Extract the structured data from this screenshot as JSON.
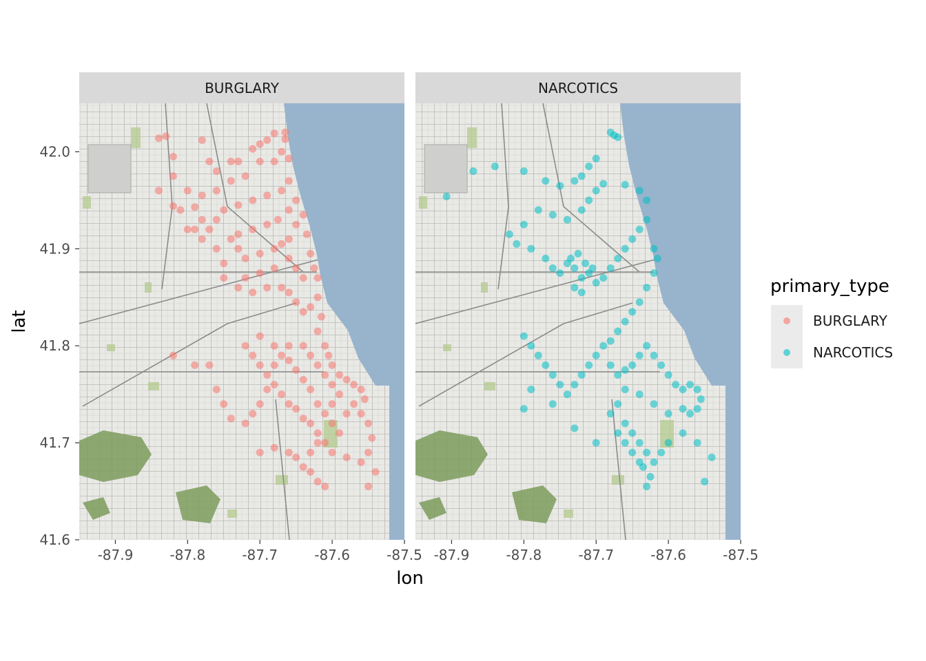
{
  "chart_data": {
    "type": "scatter",
    "xlabel": "lon",
    "ylabel": "lat",
    "xlim": [
      -87.95,
      -87.5
    ],
    "ylim": [
      41.6,
      42.05
    ],
    "x_ticks": [
      -87.9,
      -87.8,
      -87.7,
      -87.6,
      -87.5
    ],
    "x_tick_labels": [
      "-87.9",
      "-87.8",
      "-87.7",
      "-87.6",
      "-87.5"
    ],
    "y_ticks": [
      41.6,
      41.7,
      41.8,
      41.9,
      42.0
    ],
    "y_tick_labels": [
      "41.6",
      "41.7",
      "41.8",
      "41.9",
      "42.0"
    ],
    "facets": [
      "BURGLARY",
      "NARCOTICS"
    ],
    "legend": {
      "title": "primary_type",
      "position": "right",
      "entries": [
        {
          "label": "BURGLARY",
          "color": "#F8766D"
        },
        {
          "label": "NARCOTICS",
          "color": "#00BFC4"
        }
      ]
    },
    "basemap": "Chicago street map with Lake Michigan on the east",
    "series": [
      {
        "name": "BURGLARY",
        "color": "#F8766D",
        "points": [
          [
            -87.84,
            42.014
          ],
          [
            -87.83,
            42.016
          ],
          [
            -87.82,
            41.995
          ],
          [
            -87.78,
            42.012
          ],
          [
            -87.77,
            41.99
          ],
          [
            -87.76,
            41.98
          ],
          [
            -87.74,
            41.99
          ],
          [
            -87.73,
            41.99
          ],
          [
            -87.71,
            42.003
          ],
          [
            -87.7,
            42.008
          ],
          [
            -87.69,
            42.012
          ],
          [
            -87.68,
            42.019
          ],
          [
            -87.665,
            42.02
          ],
          [
            -87.665,
            42.013
          ],
          [
            -87.67,
            42.0
          ],
          [
            -87.66,
            41.993
          ],
          [
            -87.68,
            41.99
          ],
          [
            -87.7,
            41.99
          ],
          [
            -87.72,
            41.975
          ],
          [
            -87.74,
            41.97
          ],
          [
            -87.76,
            41.96
          ],
          [
            -87.78,
            41.955
          ],
          [
            -87.8,
            41.96
          ],
          [
            -87.82,
            41.975
          ],
          [
            -87.84,
            41.96
          ],
          [
            -87.82,
            41.944
          ],
          [
            -87.81,
            41.94
          ],
          [
            -87.79,
            41.943
          ],
          [
            -87.78,
            41.93
          ],
          [
            -87.77,
            41.92
          ],
          [
            -87.76,
            41.93
          ],
          [
            -87.75,
            41.94
          ],
          [
            -87.73,
            41.945
          ],
          [
            -87.71,
            41.95
          ],
          [
            -87.69,
            41.955
          ],
          [
            -87.67,
            41.96
          ],
          [
            -87.66,
            41.97
          ],
          [
            -87.65,
            41.95
          ],
          [
            -87.66,
            41.94
          ],
          [
            -87.675,
            41.93
          ],
          [
            -87.69,
            41.925
          ],
          [
            -87.71,
            41.92
          ],
          [
            -87.73,
            41.915
          ],
          [
            -87.74,
            41.91
          ],
          [
            -87.76,
            41.9
          ],
          [
            -87.78,
            41.91
          ],
          [
            -87.79,
            41.92
          ],
          [
            -87.8,
            41.92
          ],
          [
            -87.75,
            41.885
          ],
          [
            -87.75,
            41.87
          ],
          [
            -87.73,
            41.9
          ],
          [
            -87.72,
            41.89
          ],
          [
            -87.7,
            41.895
          ],
          [
            -87.68,
            41.9
          ],
          [
            -87.67,
            41.905
          ],
          [
            -87.66,
            41.91
          ],
          [
            -87.65,
            41.925
          ],
          [
            -87.64,
            41.935
          ],
          [
            -87.635,
            41.915
          ],
          [
            -87.63,
            41.895
          ],
          [
            -87.625,
            41.88
          ],
          [
            -87.62,
            41.87
          ],
          [
            -87.64,
            41.87
          ],
          [
            -87.65,
            41.88
          ],
          [
            -87.66,
            41.89
          ],
          [
            -87.68,
            41.88
          ],
          [
            -87.7,
            41.875
          ],
          [
            -87.72,
            41.87
          ],
          [
            -87.73,
            41.86
          ],
          [
            -87.71,
            41.855
          ],
          [
            -87.69,
            41.86
          ],
          [
            -87.67,
            41.86
          ],
          [
            -87.66,
            41.855
          ],
          [
            -87.65,
            41.845
          ],
          [
            -87.64,
            41.835
          ],
          [
            -87.63,
            41.84
          ],
          [
            -87.62,
            41.85
          ],
          [
            -87.615,
            41.83
          ],
          [
            -87.62,
            41.815
          ],
          [
            -87.61,
            41.8
          ],
          [
            -87.605,
            41.79
          ],
          [
            -87.6,
            41.78
          ],
          [
            -87.59,
            41.77
          ],
          [
            -87.58,
            41.765
          ],
          [
            -87.57,
            41.76
          ],
          [
            -87.56,
            41.755
          ],
          [
            -87.555,
            41.745
          ],
          [
            -87.56,
            41.73
          ],
          [
            -87.55,
            41.72
          ],
          [
            -87.545,
            41.705
          ],
          [
            -87.55,
            41.69
          ],
          [
            -87.56,
            41.68
          ],
          [
            -87.58,
            41.685
          ],
          [
            -87.6,
            41.69
          ],
          [
            -87.61,
            41.7
          ],
          [
            -87.62,
            41.71
          ],
          [
            -87.63,
            41.72
          ],
          [
            -87.64,
            41.725
          ],
          [
            -87.65,
            41.735
          ],
          [
            -87.66,
            41.74
          ],
          [
            -87.67,
            41.75
          ],
          [
            -87.68,
            41.76
          ],
          [
            -87.69,
            41.77
          ],
          [
            -87.7,
            41.78
          ],
          [
            -87.71,
            41.79
          ],
          [
            -87.72,
            41.8
          ],
          [
            -87.7,
            41.81
          ],
          [
            -87.68,
            41.8
          ],
          [
            -87.66,
            41.8
          ],
          [
            -87.64,
            41.8
          ],
          [
            -87.63,
            41.79
          ],
          [
            -87.62,
            41.78
          ],
          [
            -87.61,
            41.77
          ],
          [
            -87.6,
            41.76
          ],
          [
            -87.59,
            41.75
          ],
          [
            -87.6,
            41.74
          ],
          [
            -87.61,
            41.73
          ],
          [
            -87.62,
            41.74
          ],
          [
            -87.63,
            41.755
          ],
          [
            -87.64,
            41.765
          ],
          [
            -87.65,
            41.775
          ],
          [
            -87.66,
            41.785
          ],
          [
            -87.67,
            41.79
          ],
          [
            -87.68,
            41.78
          ],
          [
            -87.69,
            41.755
          ],
          [
            -87.7,
            41.74
          ],
          [
            -87.71,
            41.73
          ],
          [
            -87.72,
            41.72
          ],
          [
            -87.74,
            41.725
          ],
          [
            -87.75,
            41.74
          ],
          [
            -87.76,
            41.755
          ],
          [
            -87.77,
            41.78
          ],
          [
            -87.79,
            41.78
          ],
          [
            -87.82,
            41.79
          ],
          [
            -87.7,
            41.69
          ],
          [
            -87.68,
            41.695
          ],
          [
            -87.66,
            41.69
          ],
          [
            -87.65,
            41.685
          ],
          [
            -87.64,
            41.675
          ],
          [
            -87.63,
            41.67
          ],
          [
            -87.62,
            41.66
          ],
          [
            -87.61,
            41.655
          ],
          [
            -87.63,
            41.69
          ],
          [
            -87.62,
            41.7
          ],
          [
            -87.6,
            41.72
          ],
          [
            -87.58,
            41.73
          ],
          [
            -87.57,
            41.74
          ],
          [
            -87.59,
            41.71
          ],
          [
            -87.54,
            41.67
          ],
          [
            -87.55,
            41.655
          ]
        ]
      },
      {
        "name": "NARCOTICS",
        "color": "#00BFC4",
        "points": [
          [
            -87.907,
            41.954
          ],
          [
            -87.87,
            41.98
          ],
          [
            -87.84,
            41.985
          ],
          [
            -87.8,
            41.98
          ],
          [
            -87.77,
            41.97
          ],
          [
            -87.75,
            41.965
          ],
          [
            -87.73,
            41.97
          ],
          [
            -87.72,
            41.975
          ],
          [
            -87.71,
            41.985
          ],
          [
            -87.7,
            41.993
          ],
          [
            -87.68,
            42.02
          ],
          [
            -87.675,
            42.017
          ],
          [
            -87.67,
            42.015
          ],
          [
            -87.69,
            41.967
          ],
          [
            -87.7,
            41.96
          ],
          [
            -87.66,
            41.966
          ],
          [
            -87.71,
            41.95
          ],
          [
            -87.72,
            41.94
          ],
          [
            -87.74,
            41.93
          ],
          [
            -87.76,
            41.935
          ],
          [
            -87.78,
            41.94
          ],
          [
            -87.8,
            41.925
          ],
          [
            -87.82,
            41.915
          ],
          [
            -87.81,
            41.905
          ],
          [
            -87.79,
            41.9
          ],
          [
            -87.77,
            41.89
          ],
          [
            -87.76,
            41.88
          ],
          [
            -87.75,
            41.875
          ],
          [
            -87.74,
            41.885
          ],
          [
            -87.73,
            41.88
          ],
          [
            -87.72,
            41.87
          ],
          [
            -87.71,
            41.875
          ],
          [
            -87.735,
            41.89
          ],
          [
            -87.725,
            41.895
          ],
          [
            -87.715,
            41.885
          ],
          [
            -87.705,
            41.88
          ],
          [
            -87.73,
            41.86
          ],
          [
            -87.72,
            41.855
          ],
          [
            -87.7,
            41.865
          ],
          [
            -87.69,
            41.87
          ],
          [
            -87.68,
            41.88
          ],
          [
            -87.67,
            41.89
          ],
          [
            -87.66,
            41.9
          ],
          [
            -87.65,
            41.91
          ],
          [
            -87.64,
            41.92
          ],
          [
            -87.63,
            41.93
          ],
          [
            -87.64,
            41.96
          ],
          [
            -87.63,
            41.95
          ],
          [
            -87.62,
            41.9
          ],
          [
            -87.615,
            41.89
          ],
          [
            -87.62,
            41.875
          ],
          [
            -87.63,
            41.86
          ],
          [
            -87.64,
            41.845
          ],
          [
            -87.65,
            41.835
          ],
          [
            -87.66,
            41.825
          ],
          [
            -87.67,
            41.815
          ],
          [
            -87.68,
            41.805
          ],
          [
            -87.69,
            41.8
          ],
          [
            -87.7,
            41.79
          ],
          [
            -87.71,
            41.78
          ],
          [
            -87.72,
            41.77
          ],
          [
            -87.73,
            41.76
          ],
          [
            -87.74,
            41.75
          ],
          [
            -87.75,
            41.76
          ],
          [
            -87.76,
            41.77
          ],
          [
            -87.77,
            41.78
          ],
          [
            -87.78,
            41.79
          ],
          [
            -87.79,
            41.8
          ],
          [
            -87.8,
            41.81
          ],
          [
            -87.68,
            41.78
          ],
          [
            -87.67,
            41.77
          ],
          [
            -87.66,
            41.775
          ],
          [
            -87.65,
            41.78
          ],
          [
            -87.64,
            41.79
          ],
          [
            -87.63,
            41.8
          ],
          [
            -87.62,
            41.79
          ],
          [
            -87.61,
            41.78
          ],
          [
            -87.6,
            41.77
          ],
          [
            -87.59,
            41.76
          ],
          [
            -87.58,
            41.755
          ],
          [
            -87.57,
            41.76
          ],
          [
            -87.56,
            41.755
          ],
          [
            -87.555,
            41.745
          ],
          [
            -87.56,
            41.735
          ],
          [
            -87.57,
            41.73
          ],
          [
            -87.58,
            41.735
          ],
          [
            -87.6,
            41.73
          ],
          [
            -87.62,
            41.74
          ],
          [
            -87.64,
            41.75
          ],
          [
            -87.66,
            41.755
          ],
          [
            -87.67,
            41.74
          ],
          [
            -87.68,
            41.73
          ],
          [
            -87.66,
            41.72
          ],
          [
            -87.65,
            41.71
          ],
          [
            -87.64,
            41.7
          ],
          [
            -87.63,
            41.69
          ],
          [
            -87.62,
            41.68
          ],
          [
            -87.625,
            41.665
          ],
          [
            -87.635,
            41.675
          ],
          [
            -87.64,
            41.68
          ],
          [
            -87.65,
            41.69
          ],
          [
            -87.66,
            41.7
          ],
          [
            -87.67,
            41.71
          ],
          [
            -87.7,
            41.7
          ],
          [
            -87.73,
            41.715
          ],
          [
            -87.76,
            41.74
          ],
          [
            -87.79,
            41.755
          ],
          [
            -87.8,
            41.735
          ],
          [
            -87.58,
            41.71
          ],
          [
            -87.56,
            41.7
          ],
          [
            -87.54,
            41.685
          ],
          [
            -87.55,
            41.66
          ],
          [
            -87.6,
            41.7
          ],
          [
            -87.61,
            41.69
          ],
          [
            -87.63,
            41.655
          ]
        ]
      }
    ]
  }
}
